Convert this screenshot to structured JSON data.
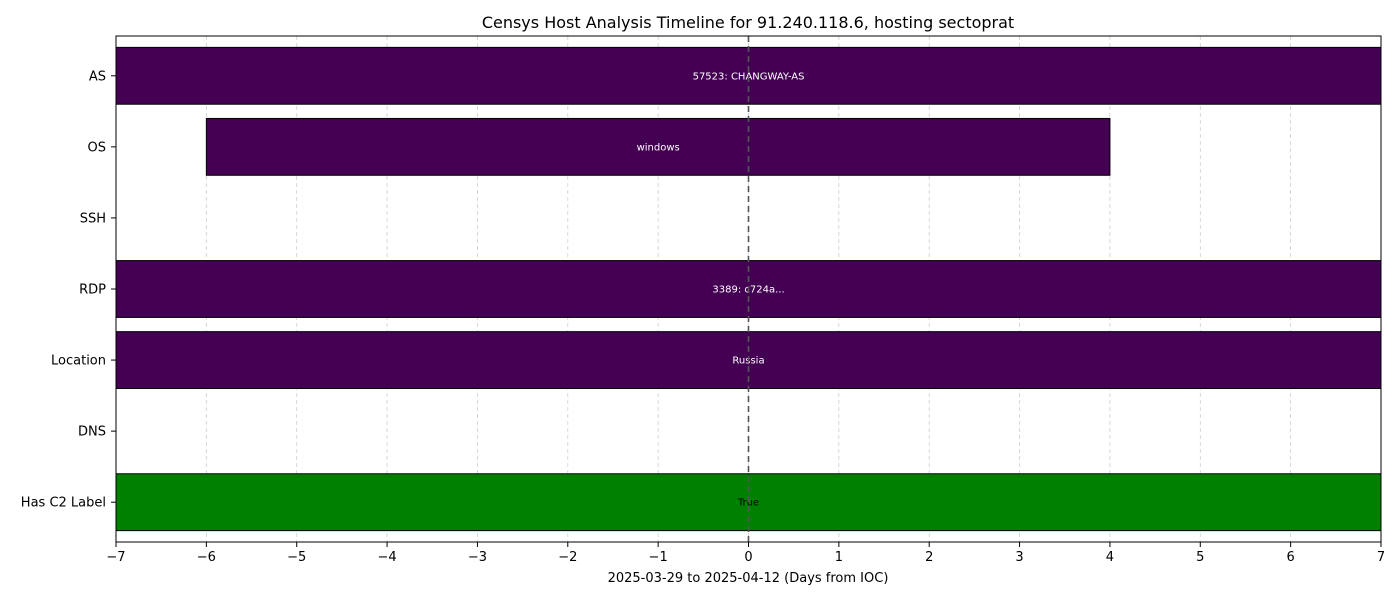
{
  "chart_data": {
    "type": "bar",
    "orientation": "horizontal",
    "title": "Censys Host Analysis Timeline for 91.240.118.6, hosting sectoprat",
    "xlabel": "2025-03-29 to 2025-04-12 (Days from IOC)",
    "ylabel": "",
    "xlim": [
      -7,
      7
    ],
    "xticks": [
      -7,
      -6,
      -5,
      -4,
      -3,
      -2,
      -1,
      0,
      1,
      2,
      3,
      4,
      5,
      6,
      7
    ],
    "xtick_labels": [
      "−7",
      "−6",
      "−5",
      "−4",
      "−3",
      "−2",
      "−1",
      "0",
      "1",
      "2",
      "3",
      "4",
      "5",
      "6",
      "7"
    ],
    "grid": {
      "x": true,
      "y": false,
      "style": "dashed"
    },
    "reference_line": {
      "x": 0,
      "style": "dashed"
    },
    "categories": [
      "AS",
      "OS",
      "SSH",
      "RDP",
      "Location",
      "DNS",
      "Has C2 Label"
    ],
    "segments": [
      {
        "category": "AS",
        "start": -7,
        "end": 7,
        "label": "57523: CHANGWAY-AS",
        "color": "#440154",
        "label_color": "#ffffff"
      },
      {
        "category": "OS",
        "start": -6,
        "end": 4,
        "label": "windows",
        "color": "#440154",
        "label_color": "#ffffff"
      },
      {
        "category": "RDP",
        "start": -7,
        "end": 7,
        "label": "3389: c724a...",
        "color": "#440154",
        "label_color": "#ffffff"
      },
      {
        "category": "Location",
        "start": -7,
        "end": 7,
        "label": "Russia",
        "color": "#440154",
        "label_color": "#ffffff"
      },
      {
        "category": "Has C2 Label",
        "start": -7,
        "end": 7,
        "label": "True",
        "color": "#008000",
        "label_color": "#000000"
      }
    ]
  }
}
